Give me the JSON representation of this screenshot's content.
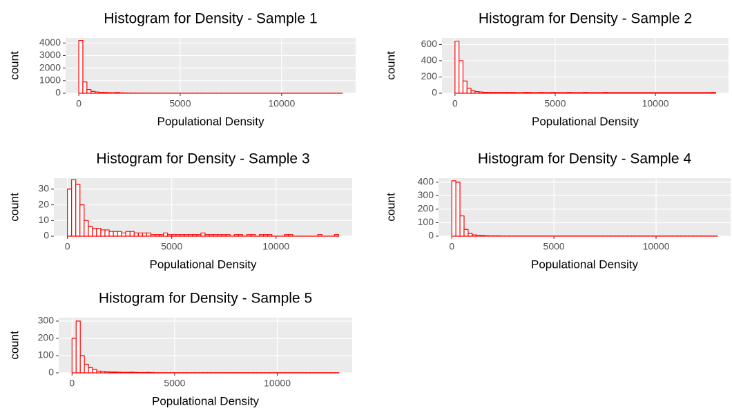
{
  "chart_data": [
    {
      "type": "histogram",
      "title": "Histogram for Density - Sample 1",
      "x_label": "Populational Density",
      "y_label": "count",
      "color": "red",
      "fill": "white",
      "grid": true,
      "bins": [
        0,
        200,
        400,
        600,
        800,
        1000,
        1200,
        1400,
        1600,
        1800,
        2000,
        2200,
        2400,
        2600,
        2800,
        3000,
        3200,
        3400,
        3600,
        3800,
        4000,
        4200,
        4400,
        4600,
        4800,
        5000,
        5200,
        5400,
        5600,
        5800,
        6000,
        6200,
        6400,
        6600,
        6800,
        7000,
        7200,
        7400,
        7600,
        7800,
        8000,
        8200,
        8400,
        8600,
        8800,
        9000,
        9200,
        9400,
        9600,
        9800,
        10000,
        10200,
        10400,
        10600,
        10800,
        11000,
        11200,
        11400,
        11600,
        11800,
        12000,
        12200,
        12400,
        12600,
        12800,
        13000
      ],
      "values": [
        4200,
        900,
        300,
        150,
        100,
        80,
        60,
        50,
        40,
        60,
        30,
        20,
        15,
        10,
        10,
        8,
        8,
        6,
        5,
        5,
        4,
        4,
        3,
        3,
        3,
        2,
        2,
        2,
        2,
        2,
        2,
        1,
        1,
        1,
        1,
        1,
        1,
        1,
        1,
        1,
        1,
        1,
        1,
        1,
        1,
        1,
        1,
        1,
        1,
        1,
        1,
        1,
        1,
        1,
        1,
        1,
        1,
        1,
        1,
        1,
        1,
        1,
        1,
        1,
        2
      ],
      "xlim": [
        -650,
        13650
      ],
      "xticks": [
        0,
        5000,
        10000
      ],
      "ylim": [
        0,
        4400
      ],
      "yticks": [
        0,
        1000,
        2000,
        3000,
        4000
      ]
    },
    {
      "type": "histogram",
      "title": "Histogram for Density - Sample 2",
      "x_label": "Populational Density",
      "y_label": "count",
      "color": "red",
      "fill": "white",
      "grid": true,
      "bins": [
        0,
        200,
        400,
        600,
        800,
        1000,
        1200,
        1400,
        1600,
        1800,
        2000,
        2200,
        2400,
        2600,
        2800,
        3000,
        3200,
        3400,
        3600,
        3800,
        4000,
        4200,
        4400,
        4600,
        4800,
        5000,
        5200,
        5400,
        5600,
        5800,
        6000,
        6200,
        6400,
        6600,
        6800,
        7000,
        7200,
        7400,
        7600,
        7800,
        8000,
        8200,
        8400,
        8600,
        8800,
        9000,
        9200,
        9400,
        9600,
        9800,
        10000,
        10200,
        10400,
        10600,
        10800,
        11000,
        11200,
        11400,
        11600,
        11800,
        12000,
        12200,
        12400,
        12600,
        12800,
        13000
      ],
      "values": [
        640,
        400,
        150,
        60,
        30,
        20,
        15,
        12,
        10,
        10,
        10,
        10,
        10,
        10,
        10,
        8,
        8,
        10,
        10,
        8,
        8,
        10,
        8,
        8,
        10,
        8,
        8,
        8,
        10,
        8,
        8,
        8,
        10,
        8,
        8,
        8,
        8,
        10,
        8,
        8,
        8,
        8,
        8,
        8,
        8,
        8,
        8,
        8,
        8,
        8,
        8,
        8,
        8,
        8,
        8,
        8,
        8,
        8,
        8,
        8,
        8,
        8,
        8,
        8,
        10
      ],
      "xlim": [
        -650,
        13650
      ],
      "xticks": [
        0,
        5000,
        10000
      ],
      "ylim": [
        0,
        680
      ],
      "yticks": [
        0,
        200,
        400,
        600
      ]
    },
    {
      "type": "histogram",
      "title": "Histogram for Density - Sample 3",
      "x_label": "Populational Density",
      "y_label": "count",
      "color": "red",
      "fill": "white",
      "grid": true,
      "bins": [
        0,
        200,
        400,
        600,
        800,
        1000,
        1200,
        1400,
        1600,
        1800,
        2000,
        2200,
        2400,
        2600,
        2800,
        3000,
        3200,
        3400,
        3600,
        3800,
        4000,
        4200,
        4400,
        4600,
        4800,
        5000,
        5200,
        5400,
        5600,
        5800,
        6000,
        6200,
        6400,
        6600,
        6800,
        7000,
        7200,
        7400,
        7600,
        7800,
        8000,
        8200,
        8400,
        8600,
        8800,
        9000,
        9200,
        9400,
        9600,
        9800,
        10000,
        10200,
        10400,
        10600,
        10800,
        11000,
        11200,
        11400,
        11600,
        11800,
        12000,
        12200,
        12400,
        12600,
        12800,
        13000
      ],
      "values": [
        30,
        36,
        33,
        20,
        10,
        6,
        5,
        5,
        4,
        4,
        3,
        3,
        3,
        2,
        3,
        3,
        2,
        2,
        2,
        2,
        1,
        1,
        1,
        2,
        1,
        1,
        1,
        1,
        1,
        1,
        1,
        1,
        2,
        1,
        1,
        1,
        1,
        1,
        1,
        0,
        1,
        1,
        0,
        1,
        1,
        0,
        1,
        1,
        1,
        0,
        0,
        0,
        1,
        1,
        0,
        0,
        0,
        0,
        0,
        0,
        1,
        0,
        0,
        0,
        1
      ],
      "xlim": [
        -650,
        13650
      ],
      "xticks": [
        0,
        5000,
        10000
      ],
      "ylim": [
        0,
        37
      ],
      "yticks": [
        0,
        10,
        20,
        30
      ]
    },
    {
      "type": "histogram",
      "title": "Histogram for Density - Sample 4",
      "x_label": "Populational Density",
      "y_label": "count",
      "color": "red",
      "fill": "white",
      "grid": true,
      "bins": [
        0,
        200,
        400,
        600,
        800,
        1000,
        1200,
        1400,
        1600,
        1800,
        2000,
        2200,
        2400,
        2600,
        2800,
        3000,
        3200,
        3400,
        3600,
        3800,
        4000,
        4200,
        4400,
        4600,
        4800,
        5000,
        5200,
        5400,
        5600,
        5800,
        6000,
        6200,
        6400,
        6600,
        6800,
        7000,
        7200,
        7400,
        7600,
        7800,
        8000,
        8200,
        8400,
        8600,
        8800,
        9000,
        9200,
        9400,
        9600,
        9800,
        10000,
        10200,
        10400,
        10600,
        10800,
        11000,
        11200,
        11400,
        11600,
        11800,
        12000,
        12200,
        12400,
        12600,
        12800,
        13000
      ],
      "values": [
        410,
        400,
        150,
        50,
        20,
        10,
        5,
        5,
        3,
        2,
        2,
        2,
        1,
        1,
        1,
        1,
        1,
        1,
        1,
        1,
        1,
        1,
        1,
        1,
        1,
        1,
        1,
        1,
        1,
        1,
        1,
        1,
        1,
        1,
        1,
        1,
        1,
        1,
        1,
        1,
        1,
        1,
        1,
        1,
        1,
        1,
        1,
        1,
        1,
        1,
        1,
        1,
        1,
        1,
        1,
        1,
        1,
        1,
        1,
        1,
        1,
        1,
        1,
        1,
        1
      ],
      "xlim": [
        -650,
        13650
      ],
      "xticks": [
        0,
        5000,
        10000
      ],
      "ylim": [
        0,
        430
      ],
      "yticks": [
        0,
        100,
        200,
        300,
        400
      ]
    },
    {
      "type": "histogram",
      "title": "Histogram for Density - Sample 5",
      "x_label": "Populational Density",
      "y_label": "count",
      "color": "red",
      "fill": "white",
      "grid": true,
      "bins": [
        0,
        200,
        400,
        600,
        800,
        1000,
        1200,
        1400,
        1600,
        1800,
        2000,
        2200,
        2400,
        2600,
        2800,
        3000,
        3200,
        3400,
        3600,
        3800,
        4000,
        4200,
        4400,
        4600,
        4800,
        5000,
        5200,
        5400,
        5600,
        5800,
        6000,
        6200,
        6400,
        6600,
        6800,
        7000,
        7200,
        7400,
        7600,
        7800,
        8000,
        8200,
        8400,
        8600,
        8800,
        9000,
        9200,
        9400,
        9600,
        9800,
        10000,
        10200,
        10400,
        10600,
        10800,
        11000,
        11200,
        11400,
        11600,
        11800,
        12000,
        12200,
        12400,
        12600,
        12800,
        13000
      ],
      "values": [
        200,
        300,
        100,
        50,
        30,
        20,
        10,
        8,
        6,
        5,
        5,
        4,
        3,
        3,
        4,
        3,
        2,
        2,
        3,
        2,
        1,
        1,
        1,
        1,
        1,
        1,
        1,
        1,
        1,
        1,
        1,
        1,
        1,
        1,
        1,
        1,
        1,
        1,
        1,
        1,
        1,
        1,
        1,
        1,
        1,
        1,
        1,
        1,
        1,
        1,
        1,
        1,
        1,
        1,
        1,
        1,
        1,
        1,
        1,
        1,
        1,
        1,
        1,
        1,
        1
      ],
      "xlim": [
        -650,
        13650
      ],
      "xticks": [
        0,
        5000,
        10000
      ],
      "ylim": [
        0,
        320
      ],
      "yticks": [
        0,
        100,
        200,
        300
      ]
    }
  ]
}
